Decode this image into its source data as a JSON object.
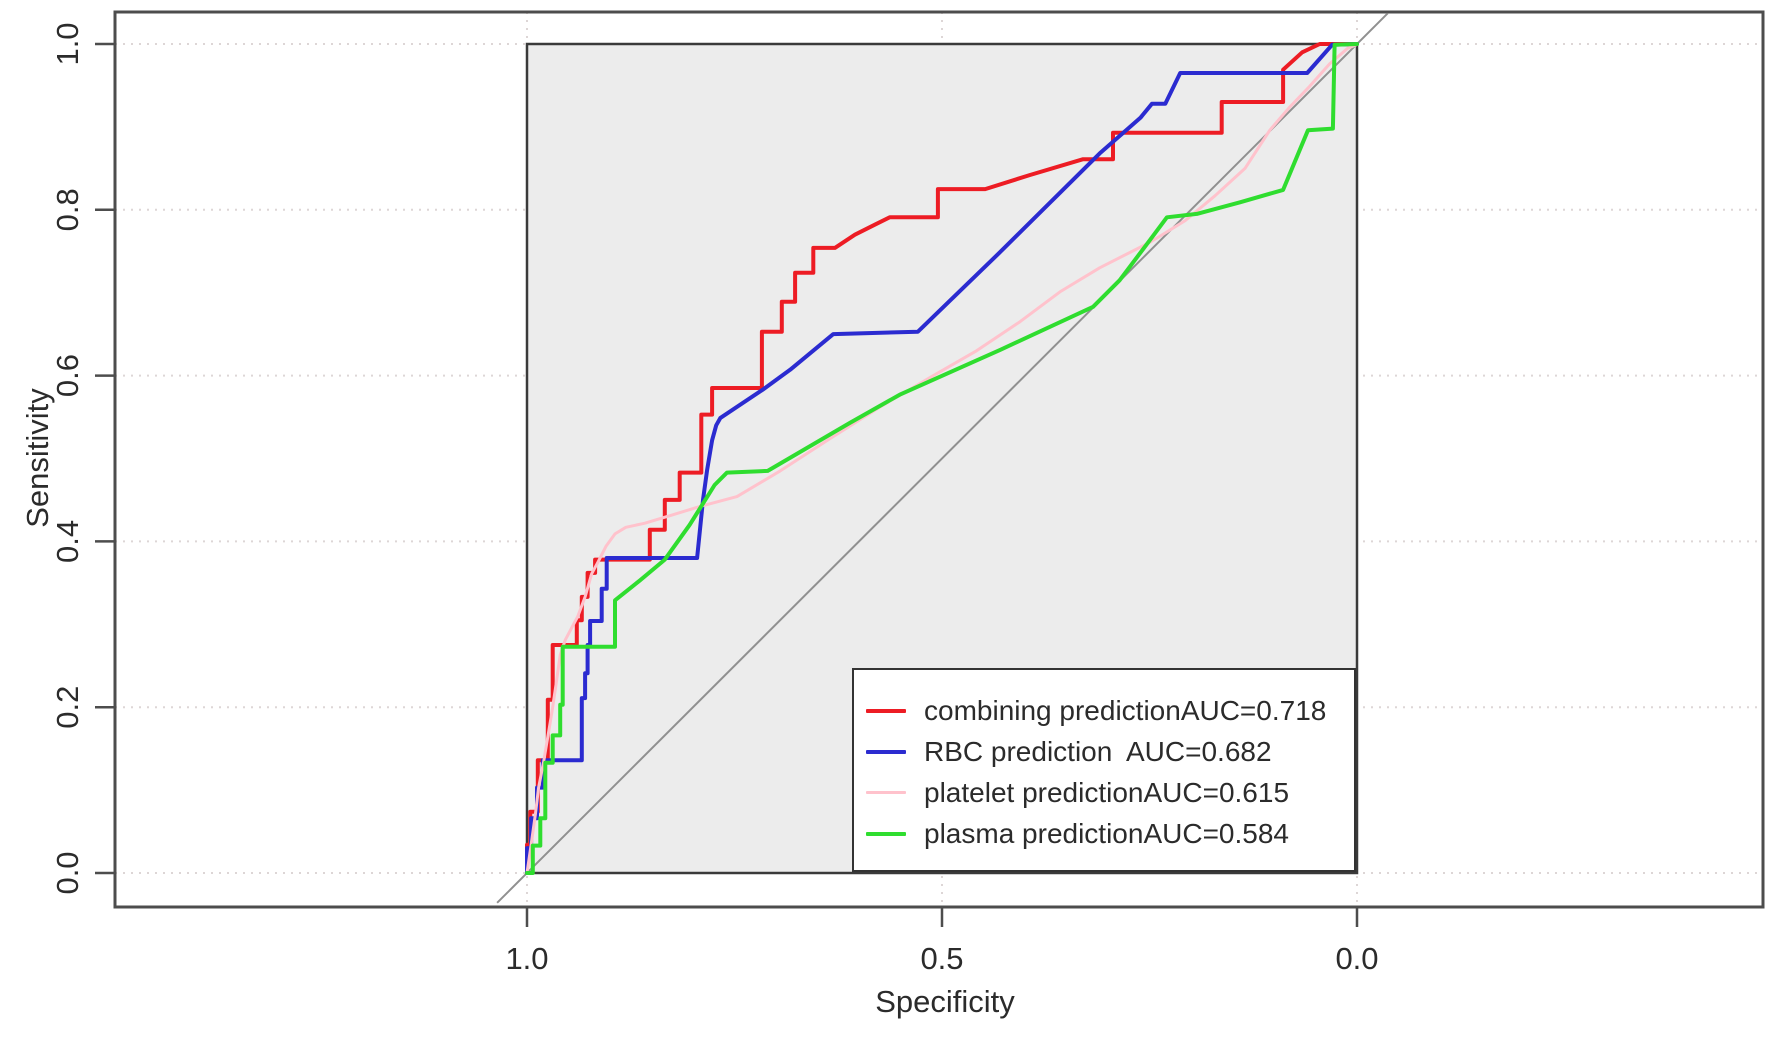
{
  "axes": {
    "x": {
      "label": "Specificity",
      "tick_labels": [
        "1.0",
        "0.5",
        "0.0"
      ],
      "tick_values": [
        1.0,
        0.5,
        0.0
      ],
      "reversed": true
    },
    "y": {
      "label": "Sensitivity",
      "tick_labels": [
        "0.0",
        "0.2",
        "0.4",
        "0.6",
        "0.8",
        "1.0"
      ],
      "tick_values": [
        0.0,
        0.2,
        0.4,
        0.6,
        0.8,
        1.0
      ]
    }
  },
  "legend": {
    "entries": [
      {
        "label": "combining prediction",
        "auc_label": "AUC=0.718",
        "color": "#ed1c24",
        "sample_weight": 4
      },
      {
        "label": "RBC prediction",
        "auc_label": "AUC=0.682",
        "color": "#2b2bd0",
        "sample_weight": 4
      },
      {
        "label": "platelet prediction",
        "auc_label": "AUC=0.615",
        "color": "#ffc2cc",
        "sample_weight": 3
      },
      {
        "label": "plasma prediction",
        "auc_label": "AUC=0.584",
        "color": "#2fdd2f",
        "sample_weight": 4
      }
    ]
  },
  "colors": {
    "panel_fill": "#ececec",
    "panel_border": "#3a3a3a",
    "outer_box": "#4d4d4d",
    "grid": "#ddd6d6",
    "tick": "#4d4d4d",
    "text": "#2b2b2b",
    "reference_line": "#909090"
  },
  "chart_data": {
    "type": "line",
    "subtype": "roc-curves",
    "title": "",
    "xlabel": "Specificity",
    "ylabel": "Sensitivity",
    "x_range": [
      1.0,
      0.0
    ],
    "y_range": [
      0.0,
      1.0
    ],
    "grid": "dotted",
    "legend_position": "bottom-right",
    "reference_line": {
      "from": [
        1.036,
        -0.036
      ],
      "to": [
        -0.037,
        1.037
      ]
    },
    "series": [
      {
        "name": "combining prediction",
        "auc": 0.718,
        "color": "#ed1c24",
        "width": 4,
        "points": [
          [
            1.0,
            0.0
          ],
          [
            1.0,
            0.034
          ],
          [
            0.996,
            0.034
          ],
          [
            0.996,
            0.074
          ],
          [
            0.987,
            0.074
          ],
          [
            0.987,
            0.136
          ],
          [
            0.975,
            0.136
          ],
          [
            0.975,
            0.166
          ],
          [
            0.975,
            0.209
          ],
          [
            0.969,
            0.209
          ],
          [
            0.969,
            0.275
          ],
          [
            0.94,
            0.275
          ],
          [
            0.94,
            0.305
          ],
          [
            0.934,
            0.305
          ],
          [
            0.934,
            0.333
          ],
          [
            0.927,
            0.333
          ],
          [
            0.927,
            0.362
          ],
          [
            0.918,
            0.362
          ],
          [
            0.918,
            0.378
          ],
          [
            0.852,
            0.378
          ],
          [
            0.852,
            0.414
          ],
          [
            0.834,
            0.414
          ],
          [
            0.834,
            0.45
          ],
          [
            0.816,
            0.45
          ],
          [
            0.816,
            0.483
          ],
          [
            0.79,
            0.483
          ],
          [
            0.79,
            0.553
          ],
          [
            0.777,
            0.553
          ],
          [
            0.777,
            0.585
          ],
          [
            0.717,
            0.585
          ],
          [
            0.717,
            0.653
          ],
          [
            0.693,
            0.653
          ],
          [
            0.693,
            0.689
          ],
          [
            0.677,
            0.689
          ],
          [
            0.677,
            0.724
          ],
          [
            0.655,
            0.724
          ],
          [
            0.655,
            0.754
          ],
          [
            0.629,
            0.754
          ],
          [
            0.605,
            0.77
          ],
          [
            0.581,
            0.782
          ],
          [
            0.563,
            0.791
          ],
          [
            0.505,
            0.791
          ],
          [
            0.505,
            0.825
          ],
          [
            0.448,
            0.825
          ],
          [
            0.394,
            0.842
          ],
          [
            0.33,
            0.861
          ],
          [
            0.294,
            0.861
          ],
          [
            0.294,
            0.893
          ],
          [
            0.163,
            0.893
          ],
          [
            0.163,
            0.93
          ],
          [
            0.089,
            0.93
          ],
          [
            0.089,
            0.969
          ],
          [
            0.066,
            0.99
          ],
          [
            0.045,
            1.0
          ],
          [
            0.0,
            1.0
          ]
        ]
      },
      {
        "name": "RBC prediction",
        "auc": 0.682,
        "color": "#2b2bd0",
        "width": 4,
        "points": [
          [
            1.0,
            0.0
          ],
          [
            1.0,
            0.03
          ],
          [
            0.995,
            0.03
          ],
          [
            0.995,
            0.066
          ],
          [
            0.988,
            0.066
          ],
          [
            0.988,
            0.103
          ],
          [
            0.981,
            0.103
          ],
          [
            0.981,
            0.136
          ],
          [
            0.967,
            0.136
          ],
          [
            0.934,
            0.136
          ],
          [
            0.934,
            0.211
          ],
          [
            0.93,
            0.211
          ],
          [
            0.93,
            0.241
          ],
          [
            0.927,
            0.241
          ],
          [
            0.927,
            0.275
          ],
          [
            0.924,
            0.275
          ],
          [
            0.924,
            0.304
          ],
          [
            0.91,
            0.304
          ],
          [
            0.91,
            0.343
          ],
          [
            0.904,
            0.343
          ],
          [
            0.904,
            0.38
          ],
          [
            0.795,
            0.38
          ],
          [
            0.788,
            0.45
          ],
          [
            0.783,
            0.486
          ],
          [
            0.777,
            0.522
          ],
          [
            0.772,
            0.54
          ],
          [
            0.767,
            0.549
          ],
          [
            0.716,
            0.583
          ],
          [
            0.683,
            0.607
          ],
          [
            0.631,
            0.65
          ],
          [
            0.529,
            0.653
          ],
          [
            0.43,
            0.749
          ],
          [
            0.31,
            0.868
          ],
          [
            0.261,
            0.911
          ],
          [
            0.247,
            0.928
          ],
          [
            0.231,
            0.928
          ],
          [
            0.213,
            0.965
          ],
          [
            0.06,
            0.965
          ],
          [
            0.03,
            0.999
          ],
          [
            0.0,
            1.0
          ]
        ]
      },
      {
        "name": "platelet prediction",
        "auc": 0.615,
        "color": "#ffc2cc",
        "width": 3,
        "points": [
          [
            1.0,
            0.0
          ],
          [
            0.995,
            0.034
          ],
          [
            0.99,
            0.07
          ],
          [
            0.986,
            0.103
          ],
          [
            0.98,
            0.134
          ],
          [
            0.975,
            0.164
          ],
          [
            0.97,
            0.194
          ],
          [
            0.965,
            0.228
          ],
          [
            0.96,
            0.263
          ],
          [
            0.954,
            0.281
          ],
          [
            0.946,
            0.296
          ],
          [
            0.939,
            0.309
          ],
          [
            0.93,
            0.333
          ],
          [
            0.922,
            0.361
          ],
          [
            0.914,
            0.376
          ],
          [
            0.905,
            0.394
          ],
          [
            0.894,
            0.409
          ],
          [
            0.881,
            0.417
          ],
          [
            0.858,
            0.422
          ],
          [
            0.825,
            0.432
          ],
          [
            0.792,
            0.442
          ],
          [
            0.747,
            0.454
          ],
          [
            0.695,
            0.485
          ],
          [
            0.635,
            0.524
          ],
          [
            0.575,
            0.562
          ],
          [
            0.514,
            0.598
          ],
          [
            0.46,
            0.629
          ],
          [
            0.406,
            0.665
          ],
          [
            0.358,
            0.701
          ],
          [
            0.31,
            0.73
          ],
          [
            0.249,
            0.761
          ],
          [
            0.207,
            0.787
          ],
          [
            0.171,
            0.817
          ],
          [
            0.135,
            0.85
          ],
          [
            0.105,
            0.896
          ],
          [
            0.081,
            0.924
          ],
          [
            0.057,
            0.949
          ],
          [
            0.033,
            0.976
          ],
          [
            0.011,
            0.995
          ],
          [
            0.001,
            0.999
          ]
        ]
      },
      {
        "name": "plasma prediction",
        "auc": 0.584,
        "color": "#2fdd2f",
        "width": 4,
        "points": [
          [
            1.0,
            0.0
          ],
          [
            0.993,
            0.0
          ],
          [
            0.993,
            0.033
          ],
          [
            0.984,
            0.033
          ],
          [
            0.984,
            0.066
          ],
          [
            0.978,
            0.066
          ],
          [
            0.978,
            0.133
          ],
          [
            0.969,
            0.133
          ],
          [
            0.969,
            0.166
          ],
          [
            0.96,
            0.166
          ],
          [
            0.96,
            0.203
          ],
          [
            0.957,
            0.203
          ],
          [
            0.957,
            0.273
          ],
          [
            0.894,
            0.273
          ],
          [
            0.894,
            0.329
          ],
          [
            0.864,
            0.353
          ],
          [
            0.834,
            0.378
          ],
          [
            0.804,
            0.42
          ],
          [
            0.774,
            0.468
          ],
          [
            0.759,
            0.483
          ],
          [
            0.71,
            0.485
          ],
          [
            0.611,
            0.543
          ],
          [
            0.551,
            0.577
          ],
          [
            0.43,
            0.631
          ],
          [
            0.318,
            0.683
          ],
          [
            0.286,
            0.715
          ],
          [
            0.249,
            0.764
          ],
          [
            0.229,
            0.791
          ],
          [
            0.193,
            0.795
          ],
          [
            0.141,
            0.809
          ],
          [
            0.089,
            0.824
          ],
          [
            0.059,
            0.896
          ],
          [
            0.029,
            0.898
          ],
          [
            0.027,
            0.999
          ],
          [
            0.0,
            1.0
          ]
        ]
      }
    ]
  }
}
